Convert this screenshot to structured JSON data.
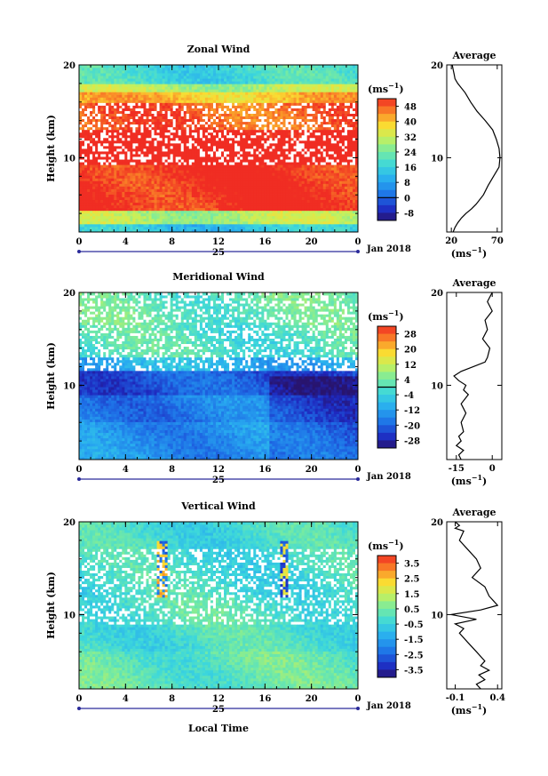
{
  "figure": {
    "xlabel": "Local Time",
    "date_label": "25",
    "month_label": "Jan 2018",
    "unit": "(ms",
    "unit_exp": "−1",
    "avg_title": "Average"
  },
  "chart_data": [
    {
      "type": "heatmap",
      "title": "Zonal Wind",
      "ylabel": "Height (km)",
      "xlabel": "",
      "x_ticks": [
        "0",
        "4",
        "8",
        "12",
        "16",
        "20",
        "0"
      ],
      "x_range": [
        0,
        24
      ],
      "y_range": [
        2,
        20
      ],
      "y_ticks": [
        "20",
        "10"
      ],
      "colorbar": {
        "unit": "(ms⁻¹)",
        "ticks": [
          "48",
          "40",
          "32",
          "24",
          "16",
          "8",
          "0",
          "-8"
        ],
        "range": [
          -12,
          52
        ],
        "zero_line": true
      },
      "profile_bands": [
        {
          "h": [
            2.0,
            3.0
          ],
          "v": 14
        },
        {
          "h": [
            3.0,
            4.2
          ],
          "v": 30
        },
        {
          "h": [
            4.2,
            9.3
          ],
          "v": 52
        },
        {
          "h": [
            9.3,
            12.0
          ],
          "v": 60,
          "gaps": true
        },
        {
          "h": [
            12.0,
            13.0
          ],
          "v": 56,
          "gaps": true
        },
        {
          "h": [
            13.0,
            16.0
          ],
          "v": 48,
          "gaps": true
        },
        {
          "h": [
            16.0,
            17.0
          ],
          "v": 40
        },
        {
          "h": [
            17.0,
            18.0
          ],
          "v": 30
        },
        {
          "h": [
            18.0,
            20.0
          ],
          "v": 18
        }
      ],
      "average": {
        "x_ticks": [
          "20",
          "70"
        ],
        "x_range": [
          15,
          75
        ],
        "heights": [
          2.0,
          2.5,
          3.0,
          3.5,
          4.0,
          4.5,
          5.0,
          6.0,
          7.0,
          8.0,
          9.0,
          10.0,
          11.0,
          12.0,
          13.0,
          14.0,
          15.0,
          16.0,
          17.0,
          18.0,
          18.5,
          19.0,
          19.5,
          20.0
        ],
        "values": [
          22,
          24,
          27,
          31,
          36,
          42,
          47,
          55,
          60,
          66,
          72,
          73,
          72,
          69,
          65,
          57,
          48,
          41,
          35,
          27,
          24,
          23,
          22,
          21
        ]
      }
    },
    {
      "type": "heatmap",
      "title": "Meridional Wind",
      "ylabel": "Height (km)",
      "xlabel": "",
      "x_ticks": [
        "0",
        "4",
        "8",
        "12",
        "16",
        "20",
        "0"
      ],
      "x_range": [
        0,
        24
      ],
      "y_range": [
        2,
        20
      ],
      "y_ticks": [
        "20",
        "10"
      ],
      "colorbar": {
        "unit": "(ms⁻¹)",
        "ticks": [
          "28",
          "20",
          "12",
          "4",
          "-4",
          "-12",
          "-20",
          "-28"
        ],
        "range": [
          -32,
          32
        ],
        "zero_line": true
      },
      "profile_bands": [
        {
          "h": [
            2.0,
            6.0
          ],
          "v": -14
        },
        {
          "h": [
            6.0,
            9.0
          ],
          "v": -17
        },
        {
          "h": [
            9.0,
            11.5
          ],
          "v": -22
        },
        {
          "h": [
            11.5,
            13.0
          ],
          "v": -10,
          "gaps": true
        },
        {
          "h": [
            13.0,
            16.5
          ],
          "v": 0,
          "gaps": true
        },
        {
          "h": [
            16.5,
            20.0
          ],
          "v": 2,
          "gaps": true
        }
      ],
      "average": {
        "x_ticks": [
          "-15",
          "0"
        ],
        "x_range": [
          -19,
          4
        ],
        "heights": [
          2.0,
          2.5,
          3.0,
          3.5,
          4.0,
          4.5,
          5.0,
          6.0,
          7.0,
          8.0,
          9.0,
          9.5,
          10.0,
          10.5,
          11.0,
          11.5,
          12.0,
          12.5,
          13.0,
          14.0,
          15.0,
          16.0,
          17.0,
          18.0,
          19.0,
          20.0
        ],
        "values": [
          -13,
          -14,
          -12,
          -15,
          -13,
          -14,
          -12,
          -13,
          -11,
          -13,
          -10,
          -12,
          -11,
          -14,
          -16,
          -13,
          -8,
          -3,
          -2,
          -1,
          -4,
          -2,
          -3,
          0,
          -2,
          0
        ]
      }
    },
    {
      "type": "heatmap",
      "title": "Vertical Wind",
      "ylabel": "Height (km)",
      "xlabel": "Local Time",
      "x_ticks": [
        "0",
        "4",
        "8",
        "12",
        "16",
        "20",
        "0"
      ],
      "x_range": [
        0,
        24
      ],
      "y_range": [
        2,
        20
      ],
      "y_ticks": [
        "20",
        "10"
      ],
      "colorbar": {
        "unit": "(ms⁻¹)",
        "ticks": [
          "3.5",
          "2.5",
          "1.5",
          "0.5",
          "-0.5",
          "-1.5",
          "-2.5",
          "-3.5"
        ],
        "range": [
          -4,
          4
        ],
        "zero_line": false
      },
      "profile_bands": [
        {
          "h": [
            2.0,
            6.0
          ],
          "v": 0.2
        },
        {
          "h": [
            6.0,
            9.0
          ],
          "v": -0.1
        },
        {
          "h": [
            9.0,
            12.0
          ],
          "v": 0.0,
          "gaps": true
        },
        {
          "h": [
            12.0,
            17.0
          ],
          "v": -0.2,
          "gaps": true
        },
        {
          "h": [
            17.0,
            20.0
          ],
          "v": -0.2
        }
      ],
      "average": {
        "x_ticks": [
          "-0.1",
          "0.4"
        ],
        "x_range": [
          -0.2,
          0.45
        ],
        "heights": [
          2.0,
          2.5,
          3.0,
          3.5,
          4.0,
          4.5,
          5.0,
          6.0,
          7.0,
          8.0,
          8.5,
          9.0,
          9.5,
          10.0,
          10.5,
          11.0,
          11.5,
          12.0,
          13.0,
          14.0,
          15.0,
          16.0,
          17.0,
          18.0,
          19.0,
          19.3,
          19.6,
          20.0
        ],
        "values": [
          0.2,
          0.15,
          0.25,
          0.18,
          0.3,
          0.2,
          0.25,
          0.15,
          0.05,
          -0.05,
          0.0,
          -0.1,
          0.15,
          -0.15,
          0.2,
          0.4,
          0.35,
          0.3,
          0.25,
          0.1,
          0.2,
          0.15,
          0.05,
          -0.05,
          0.0,
          -0.1,
          -0.05,
          -0.1
        ]
      }
    }
  ]
}
